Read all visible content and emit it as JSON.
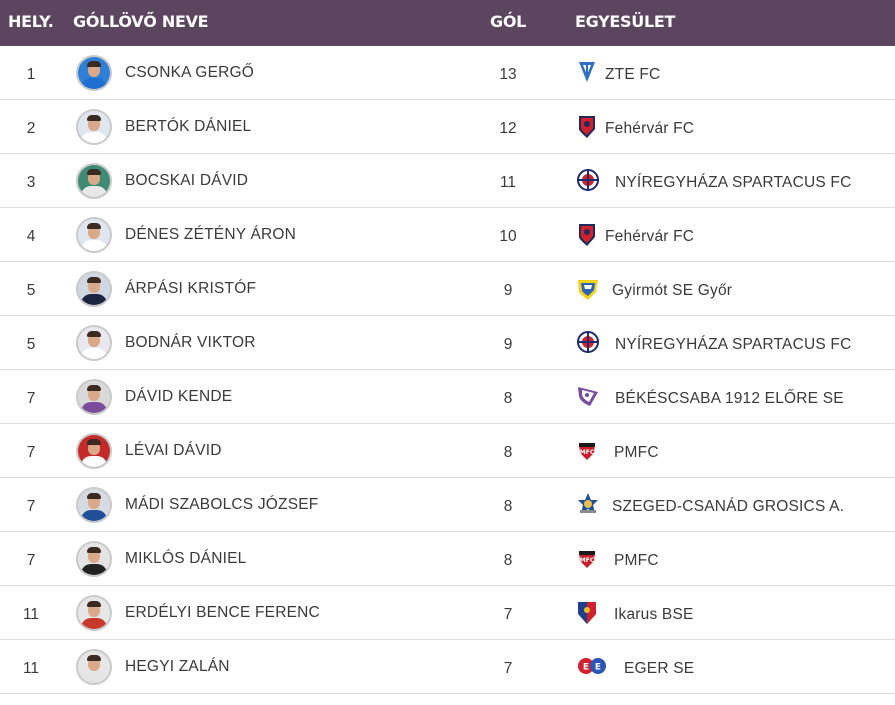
{
  "header": {
    "rank": "HELY.",
    "name": "GÓLLÖVŐ NEVE",
    "goals": "GÓL",
    "club": "EGYESÜLET"
  },
  "rows": [
    {
      "rank": "1",
      "name": "CSONKA GERGŐ",
      "goals": "13",
      "club": "ZTE FC",
      "logo": "zte-logo-icon",
      "avatar_bg": "#2f7fd6",
      "shirt": "#1e6fd0"
    },
    {
      "rank": "2",
      "name": "BERTÓK DÁNIEL",
      "goals": "12",
      "club": "Fehérvár FC",
      "logo": "fehervar-logo-icon",
      "avatar_bg": "#dfe6f0",
      "shirt": "#ffffff"
    },
    {
      "rank": "3",
      "name": "BOCSKAI DÁVID",
      "goals": "11",
      "club": "NYÍREGYHÁZA SPARTACUS FC",
      "logo": "nyiregyhaza-logo-icon",
      "avatar_bg": "#3e8a75",
      "shirt": "#e9e9e9"
    },
    {
      "rank": "4",
      "name": "DÉNES ZÉTÉNY ÁRON",
      "goals": "10",
      "club": "Fehérvár FC",
      "logo": "fehervar-logo-icon",
      "avatar_bg": "#dfe6f0",
      "shirt": "#ffffff"
    },
    {
      "rank": "5",
      "name": "ÁRPÁSI KRISTÓF",
      "goals": "9",
      "club": "Gyirmót SE Győr",
      "logo": "gyirmot-logo-icon",
      "avatar_bg": "#cfd7e3",
      "shirt": "#1b2540"
    },
    {
      "rank": "5",
      "name": "BODNÁR VIKTOR",
      "goals": "9",
      "club": "NYÍREGYHÁZA SPARTACUS FC",
      "logo": "nyiregyhaza-logo-icon",
      "avatar_bg": "#e8e8ee",
      "shirt": "#ffffff"
    },
    {
      "rank": "7",
      "name": "DÁVID KENDE",
      "goals": "8",
      "club": "BÉKÉSCSABA 1912 ELŐRE SE",
      "logo": "bekescsaba-logo-icon",
      "avatar_bg": "#d9d9d9",
      "shirt": "#7b4c9c"
    },
    {
      "rank": "7",
      "name": "LÉVAI DÁVID",
      "goals": "8",
      "club": "PMFC",
      "logo": "pmfc-logo-icon",
      "avatar_bg": "#c42a2a",
      "shirt": "#ffffff"
    },
    {
      "rank": "7",
      "name": "MÁDI SZABOLCS JÓZSEF",
      "goals": "8",
      "club": "SZEGED-CSANÁD GROSICS A.",
      "logo": "szeged-logo-icon",
      "avatar_bg": "#d6dbe3",
      "shirt": "#1f4f99"
    },
    {
      "rank": "7",
      "name": "MIKLÓS DÁNIEL",
      "goals": "8",
      "club": "PMFC",
      "logo": "pmfc-logo-icon",
      "avatar_bg": "#e4e4e4",
      "shirt": "#222222"
    },
    {
      "rank": "11",
      "name": "ERDÉLYI BENCE FERENC",
      "goals": "7",
      "club": "Ikarus BSE",
      "logo": "ikarus-logo-icon",
      "avatar_bg": "#e6e6e6",
      "shirt": "#c8382b"
    },
    {
      "rank": "11",
      "name": "HEGYI ZALÁN",
      "goals": "7",
      "club": "EGER SE",
      "logo": "eger-logo-icon",
      "avatar_bg": "#e6e6e6",
      "shirt": "#e4e4e4"
    }
  ]
}
